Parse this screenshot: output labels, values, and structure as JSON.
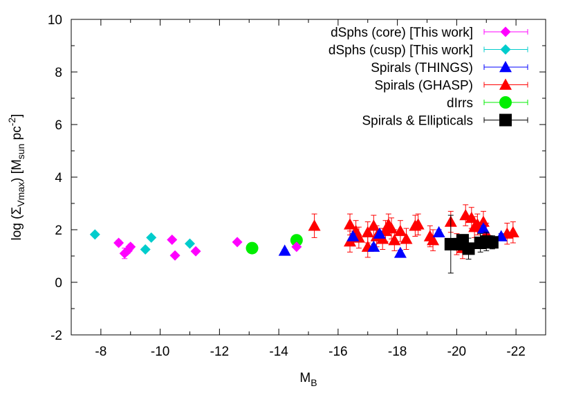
{
  "chart_data": {
    "type": "scatter",
    "title": "",
    "xlabel": "M",
    "xlabel_sub": "B",
    "ylabel_parts": [
      "log (Σ",
      "Vmax",
      ") [M",
      "sun",
      " pc",
      "-2",
      "]"
    ],
    "xlim": [
      -7,
      -23
    ],
    "ylim": [
      -2,
      10
    ],
    "x_ticks": [
      -8,
      -10,
      -12,
      -14,
      -16,
      -18,
      -20,
      -22
    ],
    "y_ticks": [
      -2,
      0,
      2,
      4,
      6,
      8,
      10
    ],
    "grid": false,
    "legend_position": "top-right",
    "series": [
      {
        "name": "dSphs (core) [This work]",
        "marker": "diamond",
        "color": "#ff00ff",
        "points": [
          {
            "x": -8.6,
            "y": 1.5,
            "err": 0.1
          },
          {
            "x": -8.8,
            "y": 1.1,
            "err": 0.2
          },
          {
            "x": -8.9,
            "y": 1.2,
            "err": 0.1
          },
          {
            "x": -9.0,
            "y": 1.35,
            "err": 0.1
          },
          {
            "x": -10.4,
            "y": 1.62,
            "err": 0.05
          },
          {
            "x": -10.5,
            "y": 1.02,
            "err": 0.05
          },
          {
            "x": -11.2,
            "y": 1.18,
            "err": 0.05
          },
          {
            "x": -12.6,
            "y": 1.53,
            "err": 0.05
          },
          {
            "x": -14.6,
            "y": 1.35,
            "err": 0.05
          }
        ]
      },
      {
        "name": "dSphs (cusp) [This work]",
        "marker": "diamond",
        "color": "#00cccc",
        "points": [
          {
            "x": -7.8,
            "y": 1.82,
            "err": 0.05
          },
          {
            "x": -9.5,
            "y": 1.25,
            "err": 0.05
          },
          {
            "x": -9.7,
            "y": 1.7,
            "err": 0.05
          },
          {
            "x": -11.0,
            "y": 1.47,
            "err": 0.05
          }
        ]
      },
      {
        "name": "Spirals (THINGS)",
        "marker": "triangle",
        "color": "#0000ff",
        "points": [
          {
            "x": -14.2,
            "y": 1.2,
            "err": 0.05
          },
          {
            "x": -16.5,
            "y": 1.75,
            "err": 0.1
          },
          {
            "x": -17.2,
            "y": 1.35,
            "err": 0.1
          },
          {
            "x": -17.4,
            "y": 1.85,
            "err": 0.1
          },
          {
            "x": -18.1,
            "y": 1.12,
            "err": 0.1
          },
          {
            "x": -19.4,
            "y": 1.9,
            "err": 0.1
          },
          {
            "x": -20.9,
            "y": 2.05,
            "err": 0.1
          },
          {
            "x": -21.5,
            "y": 1.75,
            "err": 0.1
          }
        ]
      },
      {
        "name": "Spirals (GHASP)",
        "marker": "triangle",
        "color": "#ff0000",
        "points": [
          {
            "x": -15.2,
            "y": 2.15,
            "err": 0.45
          },
          {
            "x": -16.4,
            "y": 2.2,
            "err": 0.4
          },
          {
            "x": -16.4,
            "y": 1.55,
            "err": 0.4
          },
          {
            "x": -16.6,
            "y": 1.95,
            "err": 0.4
          },
          {
            "x": -16.7,
            "y": 1.7,
            "err": 0.4
          },
          {
            "x": -17.0,
            "y": 1.9,
            "err": 0.4
          },
          {
            "x": -17.0,
            "y": 1.35,
            "err": 0.4
          },
          {
            "x": -17.2,
            "y": 2.15,
            "err": 0.4
          },
          {
            "x": -17.3,
            "y": 1.75,
            "err": 0.4
          },
          {
            "x": -17.5,
            "y": 1.65,
            "err": 0.4
          },
          {
            "x": -17.6,
            "y": 1.95,
            "err": 0.4
          },
          {
            "x": -17.7,
            "y": 2.2,
            "err": 0.4
          },
          {
            "x": -17.8,
            "y": 2.05,
            "err": 0.4
          },
          {
            "x": -17.9,
            "y": 1.6,
            "err": 0.4
          },
          {
            "x": -18.1,
            "y": 1.95,
            "err": 0.4
          },
          {
            "x": -18.3,
            "y": 1.65,
            "err": 0.4
          },
          {
            "x": -18.6,
            "y": 2.15,
            "err": 0.4
          },
          {
            "x": -18.7,
            "y": 2.2,
            "err": 0.4
          },
          {
            "x": -19.1,
            "y": 1.75,
            "err": 0.4
          },
          {
            "x": -19.2,
            "y": 1.6,
            "err": 0.4
          },
          {
            "x": -19.8,
            "y": 2.3,
            "err": 0.4
          },
          {
            "x": -20.0,
            "y": 1.45,
            "err": 0.4
          },
          {
            "x": -20.2,
            "y": 1.3,
            "err": 0.4
          },
          {
            "x": -20.3,
            "y": 2.55,
            "err": 0.4
          },
          {
            "x": -20.5,
            "y": 2.45,
            "err": 0.4
          },
          {
            "x": -20.6,
            "y": 2.1,
            "err": 0.4
          },
          {
            "x": -20.7,
            "y": 2.2,
            "err": 0.4
          },
          {
            "x": -20.9,
            "y": 2.3,
            "err": 0.4
          },
          {
            "x": -21.0,
            "y": 1.85,
            "err": 0.4
          },
          {
            "x": -21.7,
            "y": 1.85,
            "err": 0.4
          },
          {
            "x": -21.9,
            "y": 1.9,
            "err": 0.4
          }
        ]
      },
      {
        "name": "dIrrs",
        "marker": "circle",
        "color": "#00ee00",
        "points": [
          {
            "x": -13.1,
            "y": 1.3,
            "err": 0.08
          },
          {
            "x": -14.6,
            "y": 1.6,
            "err": 0.08
          }
        ]
      },
      {
        "name": "Spirals & Ellipticals",
        "marker": "square",
        "color": "#000000",
        "points": [
          {
            "x": -19.8,
            "y": 1.45,
            "err": 1.1
          },
          {
            "x": -20.1,
            "y": 1.45,
            "err": 0.2
          },
          {
            "x": -20.2,
            "y": 1.6,
            "err": 0.2
          },
          {
            "x": -20.4,
            "y": 1.28,
            "err": 0.4
          },
          {
            "x": -20.8,
            "y": 1.5,
            "err": 0.35
          },
          {
            "x": -21.0,
            "y": 1.55,
            "err": 0.35
          },
          {
            "x": -21.2,
            "y": 1.52,
            "err": 0.25
          }
        ]
      }
    ]
  }
}
